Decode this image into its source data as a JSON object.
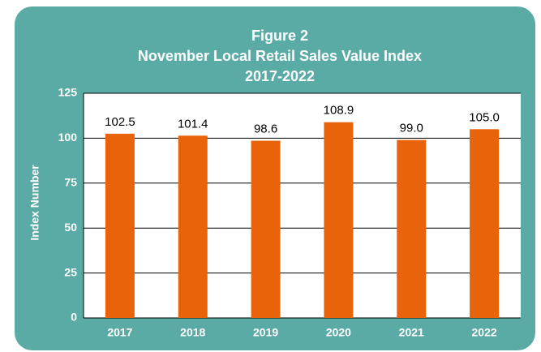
{
  "chart_data": {
    "type": "bar",
    "title": [
      "Figure 2",
      "November Local Retail Sales Value Index",
      "2017-2022"
    ],
    "y_label": "Index Number",
    "categories": [
      "2017",
      "2018",
      "2019",
      "2020",
      "2021",
      "2022"
    ],
    "values": [
      102.5,
      101.4,
      98.6,
      108.9,
      99.0,
      105.0
    ],
    "value_labels": [
      "102.5",
      "101.4",
      "98.6",
      "108.9",
      "99.0",
      "105.0"
    ],
    "color": "#e8630a",
    "ylim": [
      0,
      125
    ],
    "yticks": [
      0,
      25,
      50,
      75,
      100,
      125
    ],
    "grid": true
  }
}
